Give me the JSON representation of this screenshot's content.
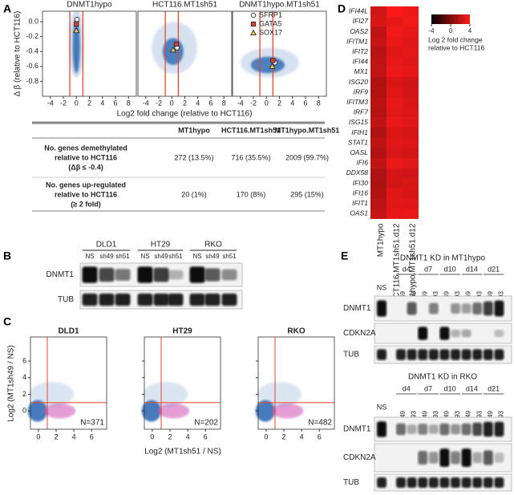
{
  "panel_labels": [
    "A",
    "B",
    "C",
    "D",
    "E"
  ],
  "panel_a": {
    "plots": [
      "DNMT1hypo",
      "HCT116.MT1sh51",
      "DNMT1hypo.MT1sh51"
    ],
    "ylabel": "Δ β (relative to HCT116)",
    "xlabel": "Log2 fold change (relative to HCT116)",
    "xlim": [
      -5.2,
      9.2
    ],
    "ylim": [
      -1.0,
      0.14
    ],
    "xticks": [
      -4,
      -2,
      0,
      2,
      4,
      6,
      8
    ],
    "yticks": [
      {
        "value": 0,
        "label": "0.0"
      },
      {
        "value": -0.2,
        "label": "-0.2"
      },
      {
        "value": -0.4,
        "label": "-0.4"
      },
      {
        "value": -0.6,
        "label": "-0.6"
      },
      {
        "value": -0.8,
        "label": "-0.8"
      }
    ],
    "threshold_lines_x": [
      -1,
      1
    ],
    "legend": [
      {
        "name": "SFRP1",
        "marker": "circle",
        "color": "#ffffff",
        "text_color": "#222222",
        "points": [
          [
            0.1,
            0.03
          ],
          [
            0.8,
            -0.35
          ],
          [
            1.3,
            -0.55
          ]
        ]
      },
      {
        "name": "GATA5",
        "marker": "square",
        "color": "#e03c31",
        "text_color": "#e03c31",
        "points": [
          [
            0.0,
            -0.03
          ],
          [
            0.7,
            -0.3
          ],
          [
            1.0,
            -0.52
          ]
        ]
      },
      {
        "name": "SOX17",
        "marker": "triangle",
        "color": "#f2c14e",
        "text_color": "#e0702a",
        "points": [
          [
            0.0,
            -0.12
          ],
          [
            0.2,
            -0.38
          ],
          [
            0.9,
            -0.6
          ]
        ]
      }
    ],
    "table": {
      "headers": [
        "MT1hypo",
        "HCT116.MT1sh51",
        "MT1hypo.MT1sh51"
      ],
      "rows": [
        {
          "label": [
            "No. genes demethylated",
            "relative to HCT116",
            "(Δβ ≤ -0.4)"
          ],
          "cells": [
            "272 (13.5%)",
            "716 (35.5%)",
            "2009 (99.7%)"
          ]
        },
        {
          "label": [
            "No. genes up-regulated",
            "relative to HCT116",
            "(≥ 2 fold)"
          ],
          "cells": [
            "20 (1%)",
            "170 (8%)",
            "295 (15%)"
          ]
        }
      ]
    }
  },
  "panel_b": {
    "groups": [
      {
        "name": "DLD1",
        "lanes": [
          "NS",
          "sh49",
          "sh51"
        ]
      },
      {
        "name": "HT29",
        "lanes": [
          "NS",
          "sh49",
          "sh51"
        ]
      },
      {
        "name": "RKO",
        "lanes": [
          "NS",
          "sh49",
          "sh51"
        ]
      }
    ],
    "rows": [
      "DNMT1",
      "TUB"
    ]
  },
  "panel_c": {
    "plots": [
      {
        "title": "DLD1",
        "n_label": "N=371"
      },
      {
        "title": "HT29",
        "n_label": "N=202"
      },
      {
        "title": "RKO",
        "n_label": "N=482"
      }
    ],
    "xlabel": "Log2 (MT1sh51 / NS)",
    "ylabel": "Log2 (MT1sh49 / NS)",
    "xlim": [
      -0.9,
      7.7
    ],
    "ylim": [
      -2.2,
      8.9
    ],
    "xticks": [
      0,
      2,
      4,
      6
    ],
    "yticks": [
      0,
      2,
      4,
      6
    ],
    "threshold_x": 1,
    "threshold_y": 1
  },
  "panel_d": {
    "genes": [
      "IFI44L",
      "IFI27",
      "OAS2",
      "IFITM1",
      "IFIT2",
      "IFI44",
      "MX1",
      "ISG20",
      "IRF9",
      "IFITM3",
      "IRF7",
      "ISG15",
      "IFIH1",
      "STAT1",
      "OASL",
      "IFI6",
      "DDX58",
      "IFI30",
      "IFI16",
      "IFIT1",
      "OAS1"
    ],
    "columns": [
      "MT1hypo",
      "HCT116.MT1sh51.d12",
      "MT1hypo.MT1sh51.d12"
    ],
    "values": [
      [
        2.5,
        3.8,
        3.5
      ],
      [
        2.8,
        3.2,
        3.6
      ],
      [
        2.0,
        3.6,
        3.3
      ],
      [
        2.2,
        3.4,
        3.0
      ],
      [
        1.8,
        3.0,
        3.2
      ],
      [
        2.0,
        3.3,
        3.0
      ],
      [
        2.1,
        3.5,
        3.2
      ],
      [
        1.5,
        2.8,
        2.5
      ],
      [
        1.6,
        3.0,
        2.6
      ],
      [
        1.8,
        3.2,
        2.8
      ],
      [
        1.7,
        3.1,
        2.9
      ],
      [
        2.0,
        3.3,
        3.0
      ],
      [
        1.5,
        2.9,
        2.7
      ],
      [
        1.9,
        3.0,
        2.9
      ],
      [
        1.6,
        2.8,
        2.6
      ],
      [
        2.0,
        3.4,
        3.1
      ],
      [
        1.5,
        2.7,
        2.5
      ],
      [
        1.4,
        2.6,
        2.8
      ],
      [
        1.6,
        3.0,
        2.7
      ],
      [
        1.8,
        3.1,
        3.0
      ],
      [
        2.2,
        3.2,
        3.3
      ]
    ],
    "colorbar_ticks": [
      -4,
      0,
      4
    ],
    "colors": [
      "#000000",
      "#ff1a1a"
    ],
    "colorbar_label": [
      "Log 2 fold change",
      "relative to HCT116"
    ]
  },
  "panel_e": {
    "blots": [
      {
        "title": "DNMT1 KD in MT1hypo",
        "first_lane": "NS",
        "days": [
          {
            "name": "d4",
            "lanes": [
              "sh49",
              "sh93"
            ]
          },
          {
            "name": "d7",
            "lanes": [
              "sh49",
              "sh93"
            ]
          },
          {
            "name": "d10",
            "lanes": [
              "sh49",
              "sh93"
            ]
          },
          {
            "name": "d14",
            "lanes": [
              "sh49",
              "sh93"
            ]
          },
          {
            "name": "d21",
            "lanes": [
              "sh49",
              "sh93"
            ]
          }
        ],
        "rows": [
          "DNMT1",
          "CDKN2A",
          "TUB"
        ]
      },
      {
        "title": "DNMT1 KD in RKO",
        "first_lane": "NS",
        "days": [
          {
            "name": "d4",
            "lanes": [
              "sh49",
              "sh93"
            ]
          },
          {
            "name": "d7",
            "lanes": [
              "sh49",
              "sh93"
            ]
          },
          {
            "name": "d10",
            "lanes": [
              "sh49",
              "sh93"
            ]
          },
          {
            "name": "d14",
            "lanes": [
              "sh49",
              "sh93"
            ]
          },
          {
            "name": "d21",
            "lanes": [
              "sh49",
              "sh93"
            ]
          }
        ],
        "rows": [
          "DNMT1",
          "CDKN2A",
          "TUB"
        ]
      }
    ]
  }
}
